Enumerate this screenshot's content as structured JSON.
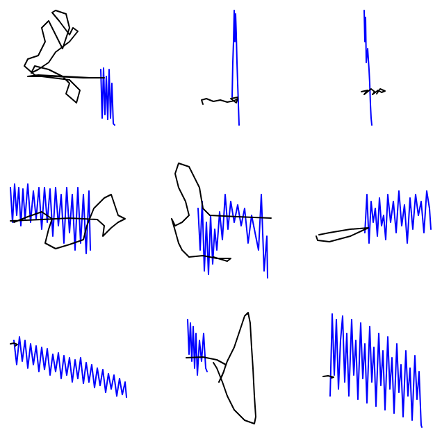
{
  "chart_data": [
    {
      "type": "line",
      "xlim": [
        0,
        212
      ],
      "ylim": [
        0,
        210
      ],
      "tick_labels": false,
      "series": [
        {
          "color": "#0000ff",
          "x": [
            145,
            147,
            149,
            151,
            153,
            155,
            157,
            159,
            161,
            163,
            165
          ],
          "values": [
            110,
            40,
            112,
            45,
            100,
            38,
            110,
            40,
            90,
            32,
            30
          ]
        },
        {
          "color": "#000000",
          "x": [
            150,
            120,
            80,
            50,
            35,
            40,
            55,
            65,
            60,
            70,
            80,
            90,
            100,
            95,
            80,
            75,
            85,
            100,
            105,
            112,
            100,
            80,
            70,
            55,
            45,
            50,
            70,
            90,
            100,
            95,
            110,
            115,
            100,
            60,
            40,
            55,
            130,
            150
          ],
          "values": [
            98,
            98,
            100,
            102,
            115,
            125,
            130,
            150,
            170,
            180,
            160,
            140,
            170,
            190,
            195,
            192,
            180,
            160,
            170,
            165,
            150,
            135,
            120,
            110,
            105,
            115,
            110,
            100,
            90,
            75,
            62,
            80,
            95,
            100,
            100,
            102,
            98,
            98
          ]
        }
      ]
    },
    {
      "type": "line",
      "xlim": [
        0,
        212
      ],
      "ylim": [
        0,
        210
      ],
      "tick_labels": false,
      "series": [
        {
          "color": "#0000ff",
          "x": [
            122,
            123,
            124,
            125,
            126,
            127,
            128,
            129,
            130,
            131,
            132
          ],
          "values": [
            70,
            120,
            150,
            195,
            150,
            190,
            160,
            120,
            90,
            60,
            30
          ]
        },
        {
          "color": "#000000",
          "x": [
            80,
            78,
            85,
            95,
            105,
            115,
            125,
            130,
            128,
            120,
            130
          ],
          "values": [
            60,
            66,
            68,
            64,
            66,
            63,
            65,
            68,
            62,
            68,
            70
          ]
        }
      ]
    },
    {
      "type": "line",
      "xlim": [
        0,
        212
      ],
      "ylim": [
        0,
        210
      ],
      "tick_labels": false,
      "series": [
        {
          "color": "#0000ff",
          "x": [
            100,
            101,
            102,
            103,
            105,
            107,
            108,
            109,
            110,
            111
          ],
          "values": [
            195,
            150,
            185,
            120,
            140,
            110,
            90,
            60,
            40,
            30
          ]
        },
        {
          "color": "#000000",
          "x": [
            96,
            105,
            100,
            110,
            115,
            112,
            120,
            125,
            130,
            123,
            118
          ],
          "values": [
            78,
            80,
            74,
            82,
            78,
            74,
            80,
            77,
            79,
            82,
            75
          ]
        }
      ]
    },
    {
      "type": "line",
      "xlim": [
        0,
        212
      ],
      "ylim": [
        0,
        210
      ],
      "tick_labels": false,
      "series": [
        {
          "color": "#0000ff",
          "x": [
            15,
            18,
            21,
            24,
            27,
            30,
            33,
            36,
            40,
            44,
            48,
            52,
            56,
            60,
            64,
            68,
            72,
            76,
            80,
            84,
            88,
            92,
            96,
            100,
            104,
            108,
            112,
            116,
            120,
            124,
            128,
            130
          ],
          "values": [
            150,
            100,
            155,
            110,
            150,
            95,
            148,
            105,
            155,
            100,
            145,
            105,
            150,
            90,
            150,
            100,
            148,
            80,
            150,
            95,
            140,
            70,
            150,
            85,
            140,
            60,
            150,
            70,
            140,
            55,
            145,
            60
          ]
        },
        {
          "color": "#000000",
          "x": [
            15,
            60,
            100,
            140,
            150,
            148,
            160,
            170,
            180,
            170,
            165,
            160,
            150,
            135,
            125,
            120,
            100,
            80,
            65,
            70,
            75,
            60,
            40,
            20
          ],
          "values": [
            102,
            104,
            106,
            104,
            95,
            80,
            92,
            100,
            105,
            110,
            125,
            140,
            135,
            120,
            95,
            75,
            68,
            62,
            70,
            90,
            105,
            115,
            108,
            100
          ]
        }
      ]
    },
    {
      "type": "line",
      "xlim": [
        0,
        212
      ],
      "ylim": [
        0,
        210
      ],
      "tick_labels": false,
      "series": [
        {
          "color": "#0000ff",
          "x": [
            73,
            76,
            79,
            82,
            85,
            88,
            91,
            94,
            97,
            100,
            104,
            108,
            112,
            116,
            120,
            125,
            130,
            135,
            140,
            145,
            150,
            155,
            160,
            164,
            168,
            172,
            173
          ],
          "values": [
            120,
            60,
            130,
            30,
            100,
            25,
            110,
            40,
            90,
            60,
            115,
            75,
            140,
            90,
            130,
            100,
            125,
            95,
            120,
            70,
            110,
            85,
            60,
            140,
            30,
            80,
            20
          ]
        },
        {
          "color": "#000000",
          "x": [
            178,
            130,
            90,
            80,
            75,
            60,
            45,
            40,
            45,
            55,
            60,
            50,
            40,
            35,
            40,
            45,
            50,
            60,
            80,
            100,
            120,
            115,
            95
          ],
          "values": [
            106,
            108,
            110,
            120,
            150,
            180,
            185,
            170,
            150,
            130,
            110,
            100,
            95,
            105,
            88,
            70,
            60,
            50,
            52,
            48,
            48,
            44,
            50
          ]
        }
      ]
    },
    {
      "type": "line",
      "xlim": [
        0,
        212
      ],
      "ylim": [
        0,
        210
      ],
      "tick_labels": false,
      "series": [
        {
          "color": "#0000ff",
          "x": [
            101,
            104,
            107,
            110,
            113,
            116,
            119,
            122,
            125,
            128,
            131,
            134,
            138,
            142,
            146,
            150,
            154,
            158,
            162,
            166,
            170,
            174,
            178,
            182,
            186,
            190,
            194,
            196
          ],
          "values": [
            85,
            140,
            70,
            130,
            100,
            120,
            80,
            135,
            95,
            110,
            75,
            140,
            100,
            130,
            85,
            145,
            95,
            125,
            70,
            135,
            90,
            140,
            110,
            130,
            85,
            145,
            120,
            90
          ]
        },
        {
          "color": "#000000",
          "x": [
            31,
            33,
            50,
            80,
            106,
            80,
            50,
            35
          ],
          "values": [
            80,
            74,
            72,
            80,
            92,
            90,
            85,
            82
          ]
        }
      ]
    },
    {
      "type": "line",
      "xlim": [
        0,
        212
      ],
      "ylim": [
        0,
        210
      ],
      "tick_labels": false,
      "series": [
        {
          "color": "#0000ff",
          "x": [
            20,
            24,
            28,
            32,
            36,
            40,
            44,
            48,
            52,
            56,
            60,
            64,
            68,
            72,
            76,
            80,
            84,
            88,
            92,
            96,
            100,
            104,
            108,
            112,
            116,
            120,
            124,
            128,
            132,
            136,
            140,
            144,
            148,
            152,
            156,
            160,
            164,
            168,
            172,
            176,
            180,
            182
          ],
          "values": [
            140,
            105,
            145,
            110,
            140,
            100,
            135,
            105,
            132,
            95,
            130,
            98,
            128,
            90,
            120,
            95,
            122,
            85,
            118,
            90,
            115,
            80,
            112,
            85,
            115,
            78,
            108,
            80,
            105,
            72,
            100,
            75,
            98,
            65,
            92,
            70,
            90,
            60,
            85,
            62,
            80,
            58
          ]
        },
        {
          "color": "#000000",
          "x": [
            15,
            20,
            25,
            22
          ],
          "values": [
            135,
            136,
            134,
            132
          ]
        }
      ]
    },
    {
      "type": "line",
      "xlim": [
        0,
        212
      ],
      "ylim": [
        0,
        210
      ],
      "tick_labels": false,
      "series": [
        {
          "color": "#0000ff",
          "x": [
            58,
            60,
            62,
            64,
            66,
            68,
            70,
            72,
            75,
            78,
            81,
            84,
            86
          ],
          "values": [
            170,
            120,
            165,
            110,
            160,
            100,
            150,
            90,
            140,
            110,
            150,
            100,
            95
          ]
        },
        {
          "color": "#000000",
          "x": [
            56,
            80,
            100,
            113,
            110,
            103,
            108,
            115,
            125,
            135,
            140,
            145,
            148,
            150,
            152,
            154,
            156,
            154,
            140,
            125,
            115,
            108,
            104,
            100,
            95
          ],
          "values": [
            115,
            116,
            112,
            105,
            95,
            80,
            90,
            110,
            130,
            160,
            175,
            180,
            165,
            130,
            100,
            60,
            30,
            20,
            25,
            40,
            60,
            80,
            90,
            100,
            108
          ]
        }
      ]
    },
    {
      "type": "line",
      "xlim": [
        0,
        212
      ],
      "ylim": [
        0,
        210
      ],
      "tick_labels": false,
      "series": [
        {
          "color": "#0000ff",
          "x": [
            51,
            54,
            57,
            60,
            63,
            66,
            69,
            72,
            75,
            78,
            82,
            85,
            88,
            91,
            95,
            98,
            101,
            104,
            108,
            111,
            114,
            117,
            121,
            124,
            127,
            130,
            134,
            137,
            140,
            143,
            147,
            150,
            153,
            156,
            160,
            163,
            166,
            169,
            173,
            176,
            179,
            182,
            183
          ],
          "values": [
            60,
            178,
            90,
            170,
            70,
            140,
            175,
            80,
            150,
            60,
            170,
            90,
            140,
            55,
            165,
            85,
            135,
            50,
            160,
            80,
            130,
            45,
            150,
            75,
            125,
            40,
            145,
            70,
            115,
            35,
            135,
            65,
            105,
            30,
            125,
            60,
            100,
            25,
            118,
            55,
            95,
            18,
            15
          ]
        },
        {
          "color": "#000000",
          "x": [
            41,
            48,
            56,
            53
          ],
          "values": [
            88,
            89,
            87,
            86
          ]
        }
      ]
    }
  ]
}
